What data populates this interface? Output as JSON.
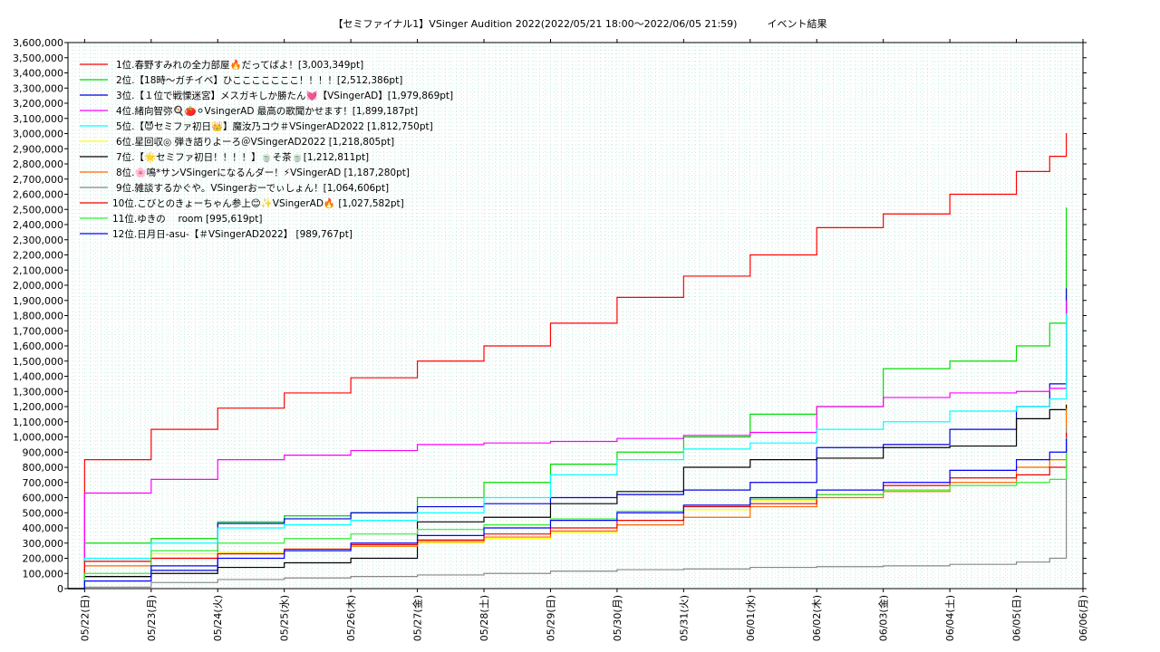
{
  "chart_data": {
    "type": "line",
    "title": "【セミファイナル1】VSinger Audition 2022(2022/05/21 18:00～2022/06/05 21:59)　　　イベント結果",
    "xlabel": "",
    "ylabel": "",
    "ylim": [
      0,
      3600000
    ],
    "xlim": [
      "05/21 18:00",
      "06/06 00:00"
    ],
    "grid": true,
    "legend_position": "top-left",
    "x_ticks": [
      "05/22(日)",
      "05/23(月)",
      "05/24(火)",
      "05/25(水)",
      "05/26(木)",
      "05/27(金)",
      "05/28(土)",
      "05/29(日)",
      "05/30(月)",
      "05/31(火)",
      "06/01(水)",
      "06/02(木)",
      "06/03(金)",
      "06/04(土)",
      "06/05(日)",
      "06/06(月)"
    ],
    "y_ticks": [
      "0",
      "100,000",
      "200,000",
      "300,000",
      "400,000",
      "500,000",
      "600,000",
      "700,000",
      "800,000",
      "900,000",
      "1,000,000",
      "1,100,000",
      "1,200,000",
      "1,300,000",
      "1,400,000",
      "1,500,000",
      "1,600,000",
      "1,700,000",
      "1,800,000",
      "1,900,000",
      "2,000,000",
      "2,100,000",
      "2,200,000",
      "2,300,000",
      "2,400,000",
      "2,500,000",
      "2,600,000",
      "2,700,000",
      "2,800,000",
      "2,900,000",
      "3,000,000",
      "3,100,000",
      "3,200,000",
      "3,300,000",
      "3,400,000",
      "3,500,000",
      "3,600,000"
    ],
    "x_days": [
      0,
      0.25,
      1.25,
      2.25,
      3.25,
      4.25,
      5.25,
      6.25,
      7.25,
      8.25,
      9.25,
      10.25,
      11.25,
      12.25,
      13.25,
      14.25,
      14.75,
      15.0
    ],
    "series": [
      {
        "name": "1位.春野すみれの全力部屋🔥だってばよ！[3,003,349pt]",
        "color": "#ff0000",
        "values": [
          0,
          850000,
          1050000,
          1190000,
          1290000,
          1390000,
          1500000,
          1600000,
          1750000,
          1920000,
          2060000,
          2200000,
          2380000,
          2470000,
          2600000,
          2750000,
          2850000,
          3003349
        ]
      },
      {
        "name": "2位.【18時～ガチイベ】ひこここここここ！！！！[2,512,386pt]",
        "color": "#00dd00",
        "values": [
          0,
          300000,
          330000,
          440000,
          480000,
          500000,
          600000,
          700000,
          820000,
          900000,
          1000000,
          1150000,
          1200000,
          1450000,
          1500000,
          1600000,
          1750000,
          2512386
        ]
      },
      {
        "name": "3位.【１位で戦慄迷宮】メスガキしか勝たん💓【VSingerAD】[1,979,869pt]",
        "color": "#0000dd",
        "values": [
          0,
          80000,
          120000,
          430000,
          460000,
          500000,
          540000,
          560000,
          600000,
          620000,
          650000,
          700000,
          930000,
          950000,
          1050000,
          1200000,
          1350000,
          1979869
        ]
      },
      {
        "name": "4位.緒向智弥🍳🍅⚪VsingerAD 最高の歌聞かせます！[1,899,187pt]",
        "color": "#ff00ff",
        "values": [
          0,
          630000,
          720000,
          850000,
          880000,
          910000,
          950000,
          960000,
          970000,
          990000,
          1010000,
          1030000,
          1200000,
          1260000,
          1290000,
          1300000,
          1320000,
          1899187
        ]
      },
      {
        "name": "5位.【😈セミファ初日👑】魔汝乃コウ＃VSingerAD2022 [1,812,750pt]",
        "color": "#00ffff",
        "values": [
          0,
          200000,
          300000,
          400000,
          420000,
          450000,
          500000,
          600000,
          750000,
          850000,
          920000,
          960000,
          1050000,
          1100000,
          1170000,
          1200000,
          1250000,
          1812750
        ]
      },
      {
        "name": "6位.星回収◎ 弾き語りよーろ＠VSingerAD2022 [1,218,805pt]",
        "color": "#ffff00",
        "values": [
          0,
          150000,
          230000,
          240000,
          260000,
          280000,
          300000,
          330000,
          370000,
          420000,
          520000,
          580000,
          600000,
          650000,
          780000,
          800000,
          850000,
          1218805
        ]
      },
      {
        "name": "7位.【🌟セミファ初日！！！！】🍵そ茶🍵[1,212,811pt]",
        "color": "#000000",
        "values": [
          0,
          80000,
          100000,
          140000,
          170000,
          200000,
          440000,
          470000,
          560000,
          640000,
          800000,
          850000,
          860000,
          930000,
          940000,
          1120000,
          1180000,
          1212811
        ]
      },
      {
        "name": "8位.🌸鳴*サンVSingerになるんダー！⚡VSingerAD [1,187,280pt]",
        "color": "#ff6600",
        "values": [
          0,
          150000,
          200000,
          230000,
          260000,
          280000,
          310000,
          340000,
          380000,
          420000,
          470000,
          540000,
          600000,
          640000,
          700000,
          800000,
          850000,
          1187280
        ]
      },
      {
        "name": "9位.雑談するかぐや。VSingerおーでぃしょん！[1,064,606pt]",
        "color": "#888888",
        "values": [
          0,
          10000,
          40000,
          60000,
          70000,
          80000,
          90000,
          100000,
          115000,
          125000,
          130000,
          140000,
          145000,
          150000,
          160000,
          175000,
          200000,
          1064606
        ]
      },
      {
        "name": "10位.こびとのきょーちゃん参上😊✨VSingerAD🔥 [1,027,582pt]",
        "color": "#ee0000",
        "values": [
          0,
          180000,
          200000,
          230000,
          260000,
          290000,
          320000,
          360000,
          400000,
          450000,
          540000,
          560000,
          620000,
          680000,
          730000,
          750000,
          800000,
          1027582
        ]
      },
      {
        "name": "11位.ゆきの　 room [995,619pt]",
        "color": "#33ee33",
        "values": [
          0,
          100000,
          250000,
          300000,
          330000,
          360000,
          390000,
          420000,
          460000,
          510000,
          550000,
          590000,
          620000,
          650000,
          680000,
          700000,
          720000,
          995619
        ]
      },
      {
        "name": "12位.日月日-asu-【＃VSingerAD2022】 [989,767pt]",
        "color": "#0000ff",
        "values": [
          0,
          50000,
          150000,
          200000,
          250000,
          300000,
          350000,
          400000,
          450000,
          500000,
          550000,
          600000,
          650000,
          700000,
          780000,
          850000,
          900000,
          989767
        ]
      }
    ]
  }
}
